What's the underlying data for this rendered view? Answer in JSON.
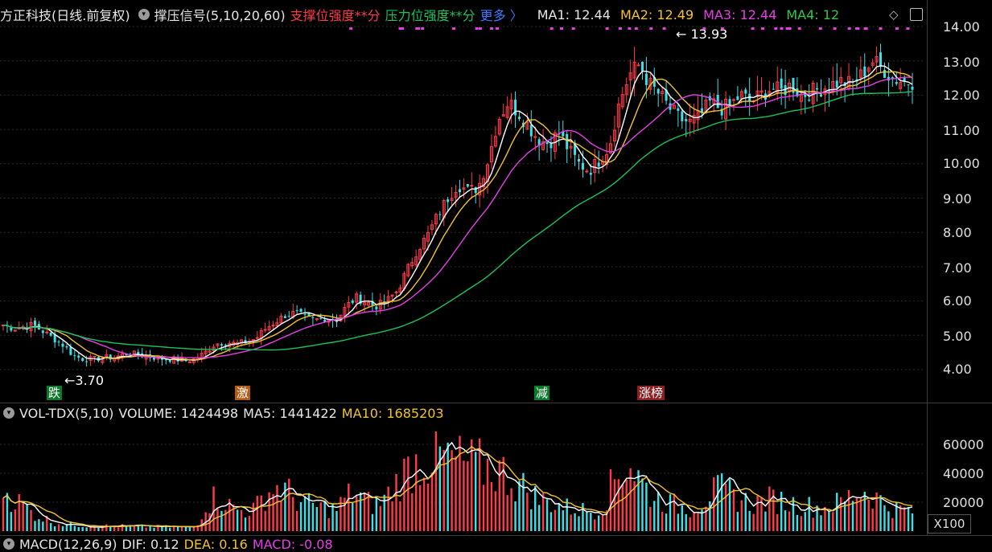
{
  "header": {
    "stock_name": "方正科技(日线.前复权)",
    "indicator": "撑压信号(5,10,20,60)",
    "support_label": "支撑位强度**分",
    "pressure_label": "压力位强度**分",
    "more_label": "更多 〉",
    "ma1": "MA1: 12.44",
    "ma2": "MA2: 12.49",
    "ma3": "MA3: 12.44",
    "ma4": "MA4: 12"
  },
  "volume_header": {
    "title": "VOL-TDX(5,10)",
    "volume": "VOLUME: 1424498",
    "ma5": "MA5: 1441422",
    "ma10": "MA10: 1685203"
  },
  "macd_header": {
    "title": "MACD(12,26,9)",
    "dif": "DIF: 0.12",
    "dea": "DEA: 0.16",
    "macd": "MACD: -0.08"
  },
  "tags": [
    "跌",
    "激",
    "减",
    "涨榜"
  ],
  "x100_label": "X100",
  "colors": {
    "up": "#ff3b4a",
    "down": "#3ee0e8",
    "ma1": "#ffffff",
    "ma2": "#f2c230",
    "ma3": "#e63fe6",
    "ma4": "#19c35a"
  },
  "chart_data": [
    {
      "type": "candlestick",
      "y_ticks": [
        "14.00",
        "13.00",
        "12.00",
        "11.00",
        "10.00",
        "9.00",
        "8.00",
        "7.00",
        "6.00",
        "5.00",
        "4.00"
      ],
      "ylim": [
        3.8,
        14.2
      ],
      "annotations": [
        {
          "label": "13.93",
          "value": 13.93
        },
        {
          "label": "3.70",
          "value": 3.7
        }
      ],
      "close_trend": [
        5.3,
        5.2,
        5.25,
        5.3,
        5.1,
        4.9,
        4.7,
        4.4,
        4.3,
        4.3,
        4.35,
        4.35,
        4.45,
        4.45,
        4.4,
        4.35,
        4.3,
        4.3,
        4.25,
        4.3,
        4.5,
        4.75,
        4.8,
        4.75,
        4.8,
        4.9,
        5.2,
        5.4,
        5.6,
        5.65,
        5.5,
        5.45,
        5.5,
        5.45,
        5.85,
        6.1,
        5.95,
        5.85,
        6.0,
        6.3,
        6.9,
        7.5,
        7.9,
        8.5,
        9.0,
        9.4,
        9.2,
        9.3,
        10.1,
        11.3,
        11.8,
        11.5,
        11.1,
        10.7,
        10.6,
        10.9,
        10.4,
        10.0,
        9.8,
        10.1,
        10.5,
        11.8,
        12.6,
        12.9,
        12.3,
        12.0,
        11.6,
        11.3,
        11.2,
        11.4,
        11.8,
        11.6,
        11.7,
        12.0,
        11.8,
        12.0,
        12.2,
        12.1,
        12.3,
        12.0,
        12.1,
        12.2,
        12.3,
        12.4,
        12.3,
        12.6,
        13.0,
        12.8,
        12.5,
        12.4,
        12.4
      ],
      "ma_lines": [
        "MA1",
        "MA2",
        "MA3",
        "MA4"
      ]
    },
    {
      "type": "bar",
      "name": "volume",
      "y_ticks": [
        "60000",
        "40000",
        "20000"
      ],
      "ylim": [
        0,
        70000
      ],
      "unit": "X100",
      "values_trend": [
        30000,
        22000,
        18000,
        12000,
        9000,
        6000,
        5000,
        4500,
        4000,
        3800,
        3600,
        3500,
        3400,
        3300,
        3200,
        3000,
        2900,
        2800,
        2700,
        2600,
        18000,
        24000,
        20000,
        15000,
        14000,
        16000,
        26000,
        30000,
        28000,
        22000,
        19000,
        17000,
        16000,
        15000,
        24000,
        26000,
        20000,
        18000,
        24000,
        34000,
        42000,
        48000,
        50000,
        52000,
        50000,
        48000,
        46000,
        45000,
        44000,
        42000,
        38000,
        32000,
        28000,
        22000,
        20000,
        18000,
        16000,
        15000,
        14000,
        15000,
        28000,
        42000,
        48000,
        36000,
        26000,
        22000,
        19000,
        17000,
        16000,
        20000,
        26000,
        28000,
        26000,
        22000,
        19000,
        20000,
        22000,
        21000,
        19000,
        18000,
        17000,
        16000,
        18000,
        20000,
        25000,
        28000,
        26000,
        20000,
        16000,
        15000,
        14000
      ]
    },
    {
      "type": "bar",
      "name": "MACD",
      "values": {
        "DIF": 0.12,
        "DEA": 0.16,
        "MACD": -0.08
      }
    }
  ]
}
